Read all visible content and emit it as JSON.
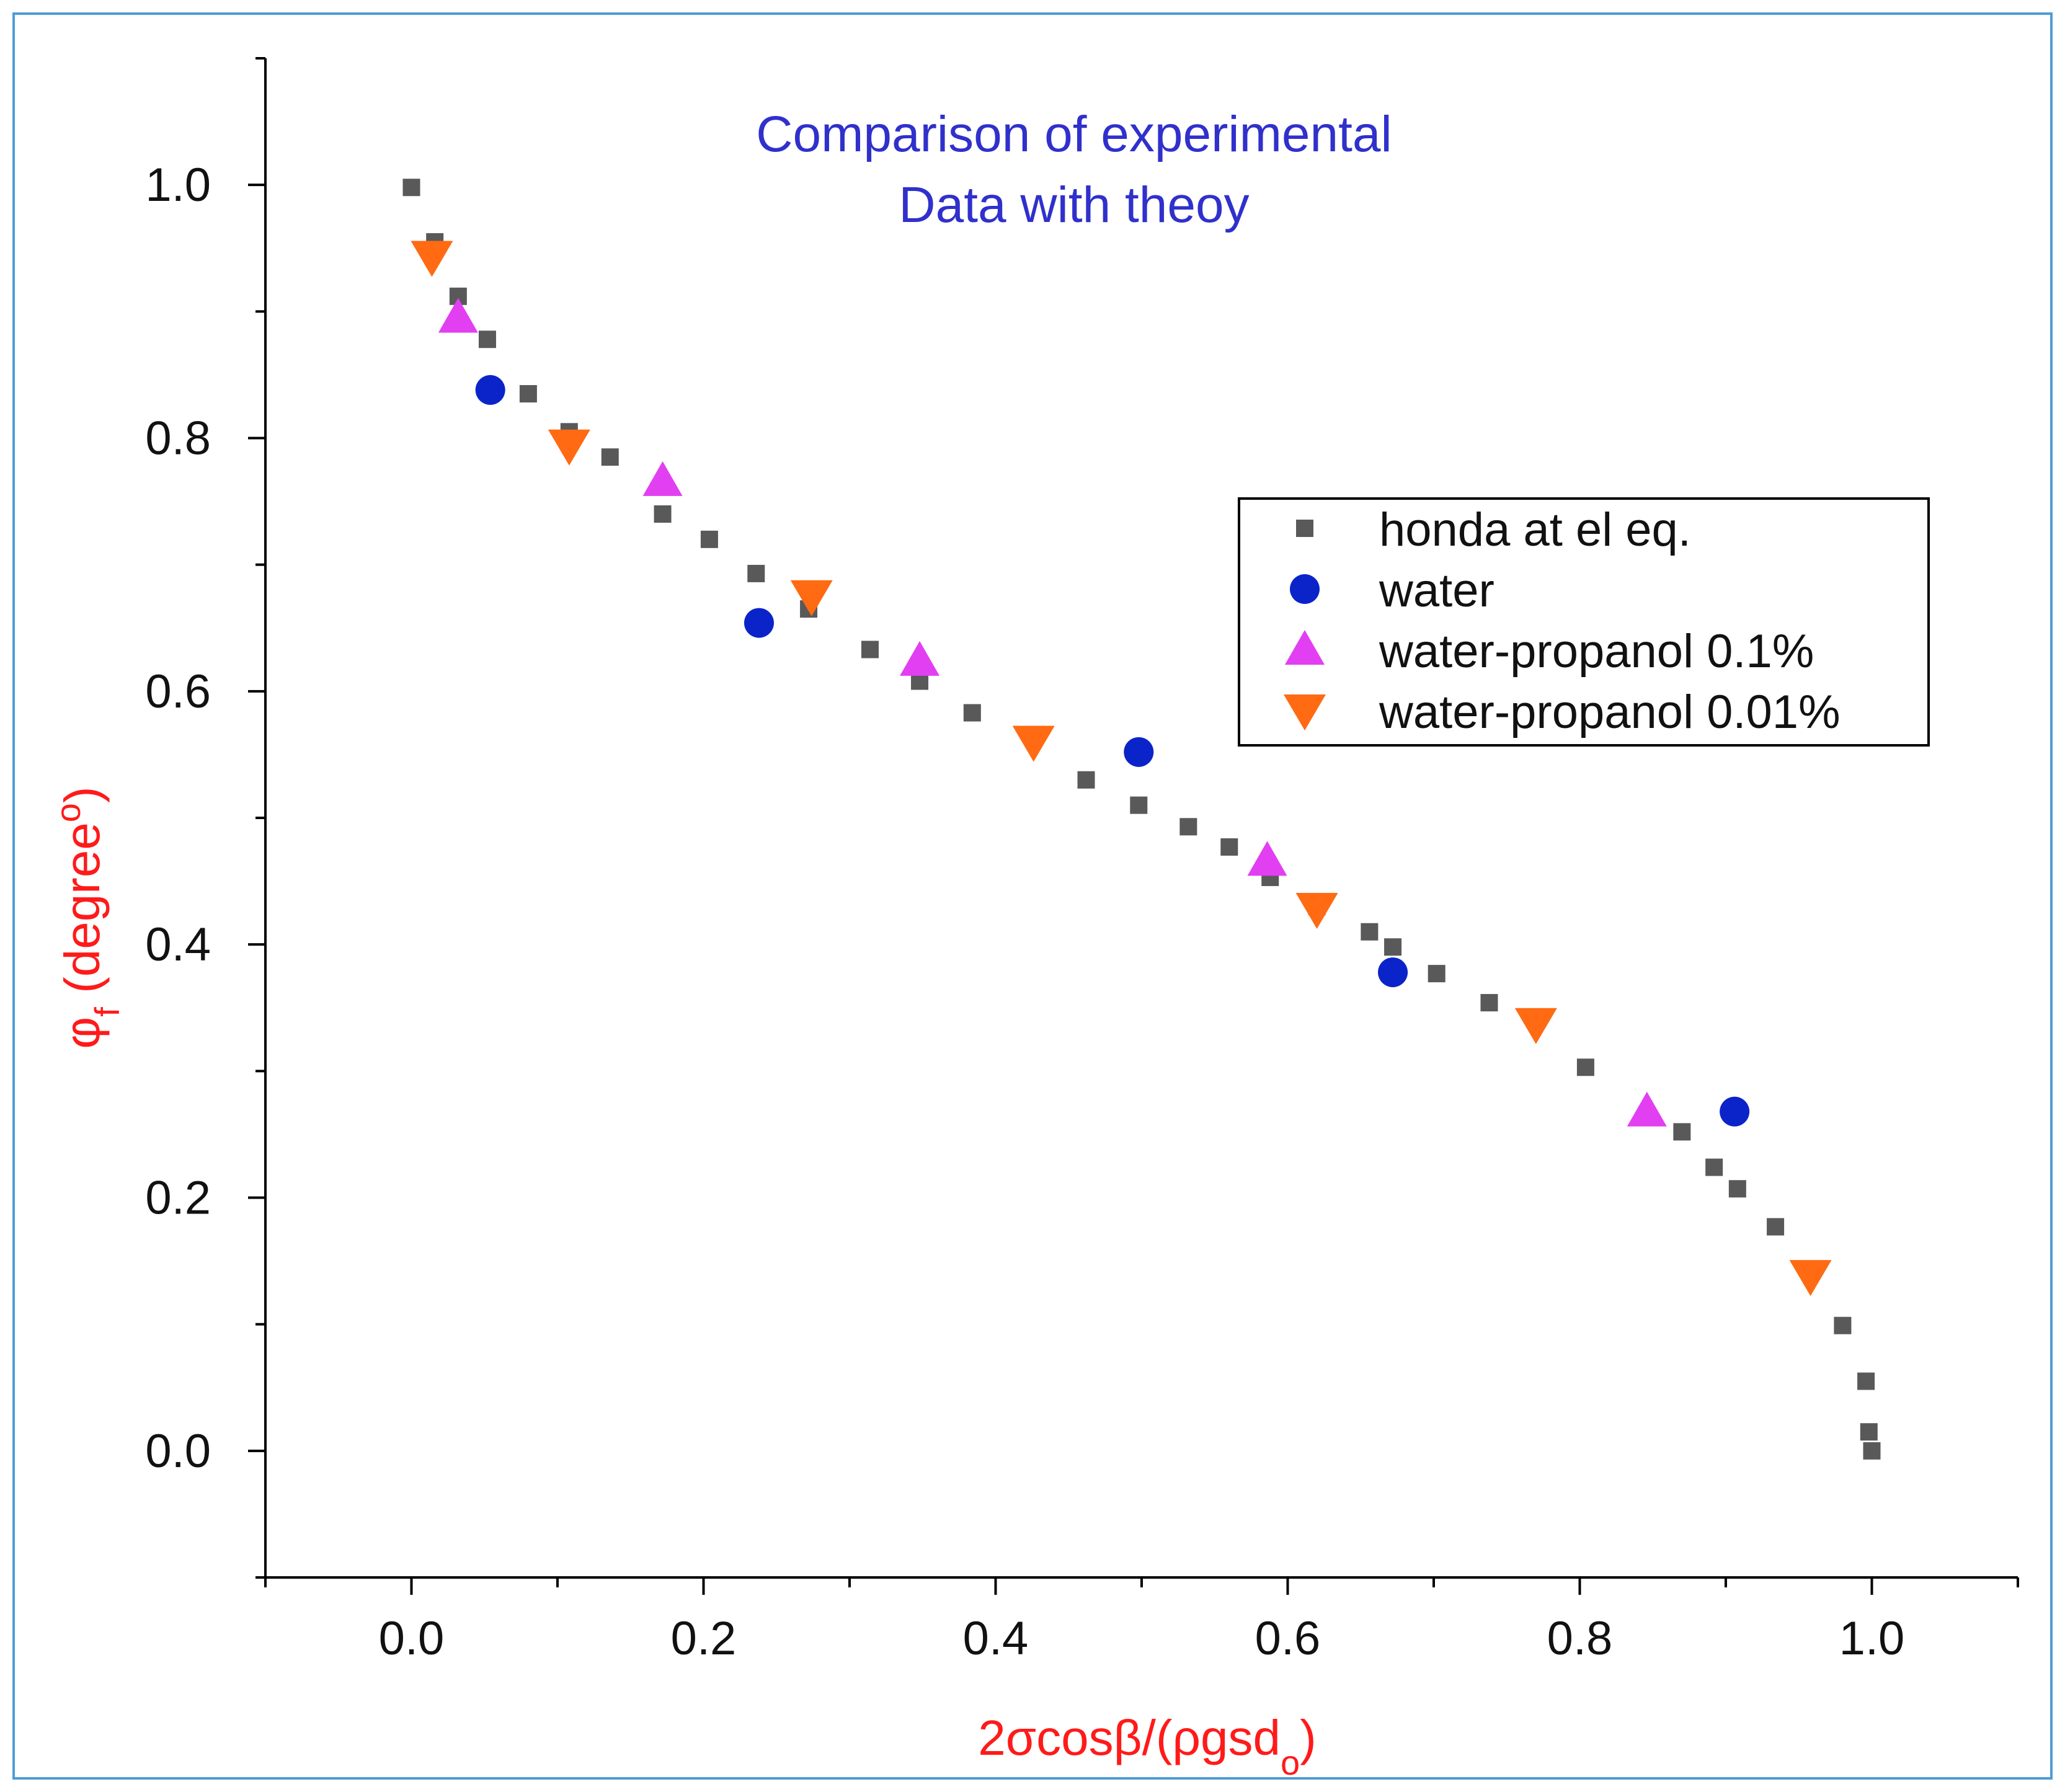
{
  "chart_data": {
    "type": "scatter",
    "title_lines": [
      "Comparison of experimental",
      "Data with theoy"
    ],
    "xlabel": "2σcosβ/(ρgsd",
    "xlabel_sub": "o",
    "xlabel_end": ")",
    "ylabel": "φ",
    "ylabel_sub": "f",
    "ylabel_rest": " (degree",
    "ylabel_sup": "o",
    "ylabel_end": ")",
    "xlim": [
      -0.1,
      1.1
    ],
    "ylim": [
      -0.1,
      1.1
    ],
    "xticks": [
      0.0,
      0.2,
      0.4,
      0.6,
      0.8,
      1.0
    ],
    "yticks": [
      0.0,
      0.2,
      0.4,
      0.6,
      0.8,
      1.0
    ],
    "xtick_labels": [
      "0.0",
      "0.2",
      "0.4",
      "0.6",
      "0.8",
      "1.0"
    ],
    "ytick_labels": [
      "0.0",
      "0.2",
      "0.4",
      "0.6",
      "0.8",
      "1.0"
    ],
    "legend_position": "right-middle",
    "series": [
      {
        "name": "honda at el eq.",
        "marker": "square",
        "color": "#595959",
        "x": [
          0.0,
          0.016,
          0.032,
          0.052,
          0.08,
          0.108,
          0.136,
          0.172,
          0.204,
          0.236,
          0.272,
          0.314,
          0.348,
          0.384,
          0.462,
          0.498,
          0.532,
          0.56,
          0.588,
          0.62,
          0.656,
          0.672,
          0.702,
          0.738,
          0.804,
          0.87,
          0.892,
          0.908,
          0.934,
          0.98,
          0.996,
          0.998,
          1.0
        ],
        "y": [
          0.998,
          0.955,
          0.912,
          0.878,
          0.835,
          0.805,
          0.785,
          0.74,
          0.72,
          0.693,
          0.665,
          0.633,
          0.608,
          0.583,
          0.53,
          0.51,
          0.493,
          0.477,
          0.453,
          0.43,
          0.41,
          0.398,
          0.377,
          0.354,
          0.303,
          0.252,
          0.224,
          0.207,
          0.177,
          0.099,
          0.055,
          0.015,
          0.0
        ]
      },
      {
        "name": "water",
        "marker": "circle",
        "color": "#0b24c9",
        "x": [
          0.054,
          0.238,
          0.498,
          0.672,
          0.906
        ],
        "y": [
          0.838,
          0.654,
          0.552,
          0.378,
          0.268
        ]
      },
      {
        "name": "water-propanol 0.1%",
        "marker": "triangle-up",
        "color": "#e23ff2",
        "x": [
          0.032,
          0.172,
          0.348,
          0.586,
          0.846
        ],
        "y": [
          0.895,
          0.766,
          0.624,
          0.466,
          0.268
        ]
      },
      {
        "name": "water-propanol 0.01%",
        "marker": "triangle-down",
        "color": "#ff6a12",
        "x": [
          0.014,
          0.108,
          0.274,
          0.426,
          0.62,
          0.77,
          0.958
        ],
        "y": [
          0.943,
          0.794,
          0.675,
          0.56,
          0.428,
          0.337,
          0.138
        ]
      }
    ],
    "colors": {
      "title": "#3030cc",
      "axis_label": "#ff1a1a",
      "tick_label": "#111111",
      "axes": "#000000",
      "border": "#4f9bd5"
    }
  }
}
